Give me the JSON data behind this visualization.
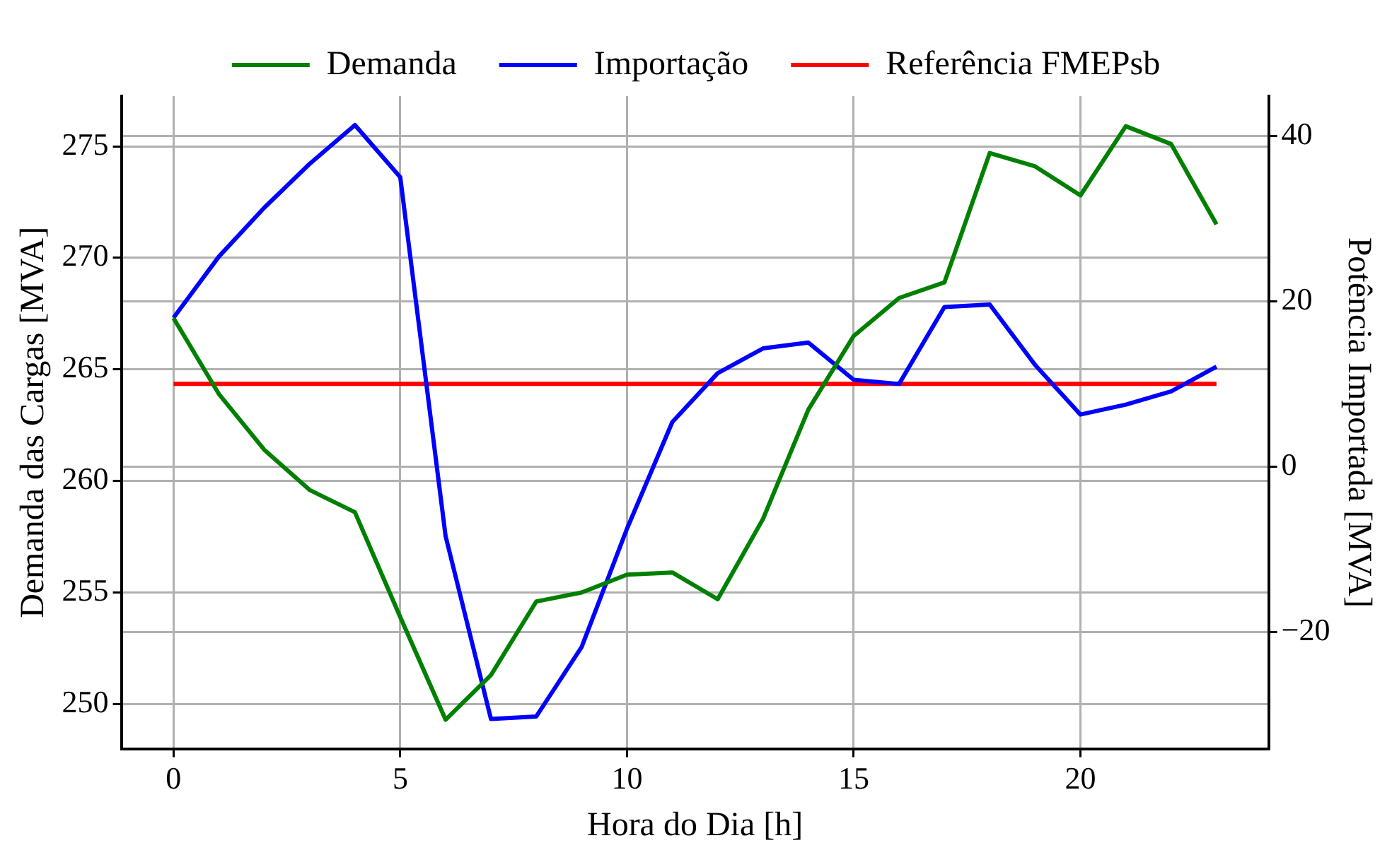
{
  "chart_data": {
    "type": "line",
    "xlabel": "Hora do Dia [h]",
    "ylabel": "Demanda das Cargas [MVA]",
    "y2label": "Potência Importada [MVA]",
    "x": [
      0,
      1,
      2,
      3,
      4,
      5,
      6,
      7,
      8,
      9,
      10,
      11,
      12,
      13,
      14,
      15,
      16,
      17,
      18,
      19,
      20,
      21,
      22,
      23
    ],
    "series": [
      {
        "name": "Demanda",
        "color": "#008000",
        "values": [
          267.3,
          263.9,
          261.4,
          259.6,
          258.6,
          253.9,
          249.3,
          251.3,
          254.6,
          255.0,
          255.8,
          255.9,
          254.7,
          258.3,
          263.2,
          266.5,
          268.2,
          268.9,
          274.7,
          274.1,
          272.8,
          275.9,
          275.1,
          271.5
        ]
      },
      {
        "name": "Importação",
        "color": "#0000ff",
        "axis": "y2",
        "values": [
          18.0,
          25.4,
          31.3,
          36.6,
          41.3,
          35.0,
          -8.4,
          -30.5,
          -30.2,
          -21.8,
          -7.5,
          5.4,
          11.3,
          14.3,
          15.0,
          10.5,
          10.0,
          19.3,
          19.6,
          12.3,
          6.3,
          7.5,
          9.1,
          12.1
        ]
      },
      {
        "name": "Referência FMEPsb",
        "color": "#ff0000",
        "axis": "y2",
        "values": [
          10,
          10,
          10,
          10,
          10,
          10,
          10,
          10,
          10,
          10,
          10,
          10,
          10,
          10,
          10,
          10,
          10,
          10,
          10,
          10,
          10,
          10,
          10,
          10
        ]
      }
    ],
    "xlim": [
      -1.15,
      24.15
    ],
    "xticks": [
      0,
      5,
      10,
      15,
      20
    ],
    "ylim": [
      248.0,
      277.25
    ],
    "yticks": [
      250,
      255,
      260,
      265,
      270,
      275
    ],
    "y2lim": [
      -34.1,
      44.8
    ],
    "y2ticks": [
      -20,
      0,
      20,
      40
    ],
    "grid": true,
    "legend": "top",
    "marker": "none",
    "line_style": "solid"
  }
}
